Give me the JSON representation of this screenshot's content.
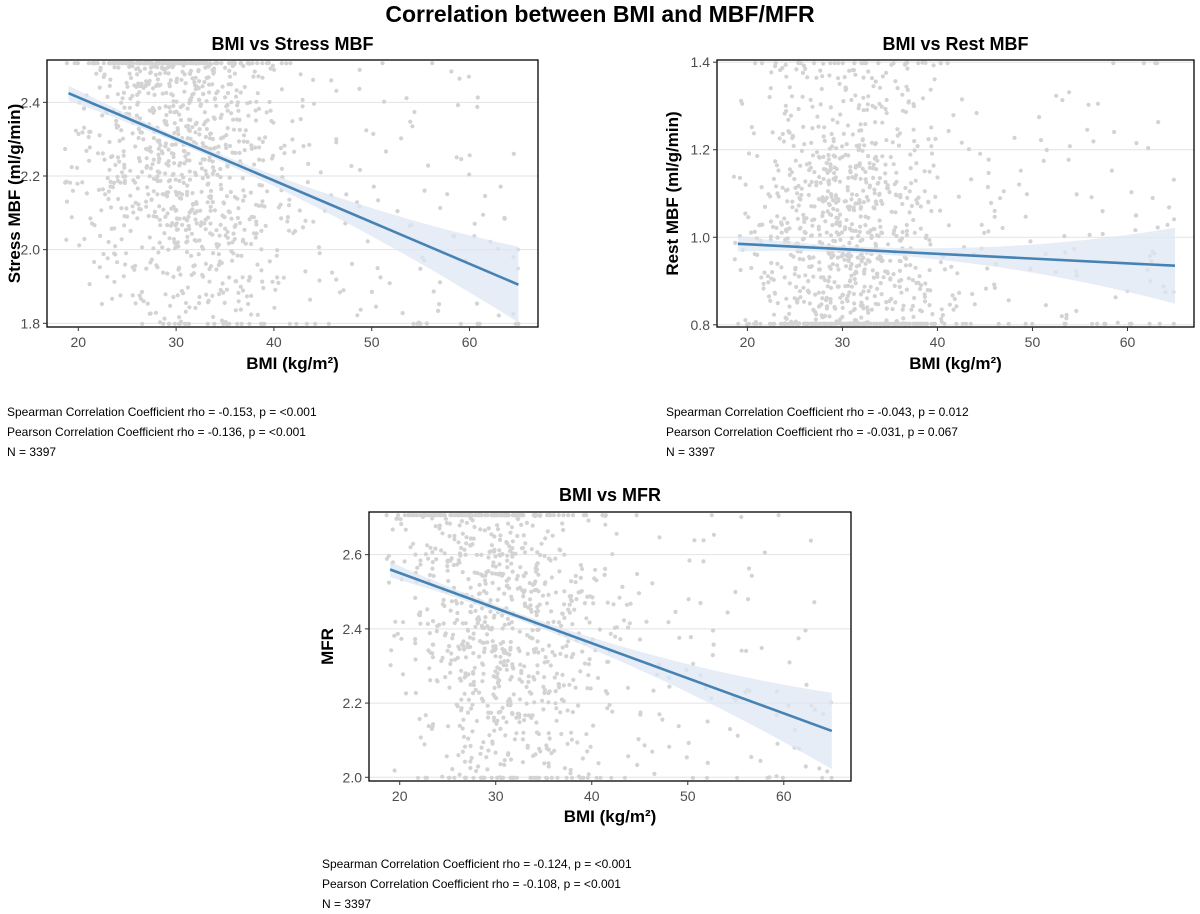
{
  "figure_title": "Correlation between BMI and MBF/MFR",
  "colors": {
    "points": "#d3d3d3",
    "line": "#4682b4",
    "band": "#dde7f3",
    "grid": "#e3e3e3"
  },
  "chart_data": [
    {
      "type": "scatter",
      "title": "BMI vs Stress MBF",
      "xlabel": "BMI (kg/m²)",
      "ylabel": "Stress MBF (ml/g/min)",
      "xlim": [
        16.8,
        67.0
      ],
      "ylim": [
        1.79,
        2.515
      ],
      "xticks": [
        20,
        30,
        40,
        50,
        60
      ],
      "yticks": [
        1.8,
        2.0,
        2.2,
        2.4
      ],
      "xtick_labels": [
        "20",
        "30",
        "40",
        "50",
        "60"
      ],
      "ytick_labels": [
        "1.8",
        "2.0",
        "2.2",
        "2.4"
      ],
      "grid": true,
      "n_points": 1100,
      "fit_line": {
        "x": [
          19,
          65
        ],
        "y": [
          2.425,
          1.905
        ]
      },
      "stats": {
        "spearman": "Spearman Correlation Coefficient rho = -0.153, p = <0.001",
        "pearson": "Pearson Correlation Coefficient rho = -0.136, p = <0.001",
        "n": "N = 3397"
      }
    },
    {
      "type": "scatter",
      "title": "BMI vs Rest MBF",
      "xlabel": "BMI (kg/m²)",
      "ylabel": "Rest MBF (ml/g/min)",
      "xlim": [
        16.8,
        67.0
      ],
      "ylim": [
        0.795,
        1.405
      ],
      "xticks": [
        20,
        30,
        40,
        50,
        60
      ],
      "yticks": [
        0.8,
        1.0,
        1.2,
        1.4
      ],
      "xtick_labels": [
        "20",
        "30",
        "40",
        "50",
        "60"
      ],
      "ytick_labels": [
        "0.8",
        "1.0",
        "1.2",
        "1.4"
      ],
      "grid": true,
      "n_points": 1100,
      "fit_line": {
        "x": [
          19,
          65
        ],
        "y": [
          0.985,
          0.935
        ]
      },
      "stats": {
        "spearman": "Spearman Correlation Coefficient rho = -0.043, p = 0.012",
        "pearson": "Pearson Correlation Coefficient rho = -0.031, p = 0.067",
        "n": "N = 3397"
      }
    },
    {
      "type": "scatter",
      "title": "BMI vs MFR",
      "xlabel": "BMI (kg/m²)",
      "ylabel": "MFR",
      "xlim": [
        16.8,
        67.0
      ],
      "ylim": [
        1.99,
        2.715
      ],
      "xticks": [
        20,
        30,
        40,
        50,
        60
      ],
      "yticks": [
        2.0,
        2.2,
        2.4,
        2.6
      ],
      "xtick_labels": [
        "20",
        "30",
        "40",
        "50",
        "60"
      ],
      "ytick_labels": [
        "2.0",
        "2.2",
        "2.4",
        "2.6"
      ],
      "grid": true,
      "n_points": 1000,
      "fit_line": {
        "x": [
          19,
          65
        ],
        "y": [
          2.56,
          2.125
        ]
      },
      "stats": {
        "spearman": "Spearman Correlation Coefficient rho = -0.124, p = <0.001",
        "pearson": "Pearson Correlation Coefficient rho = -0.108, p = <0.001",
        "n": "N = 3397"
      }
    }
  ]
}
